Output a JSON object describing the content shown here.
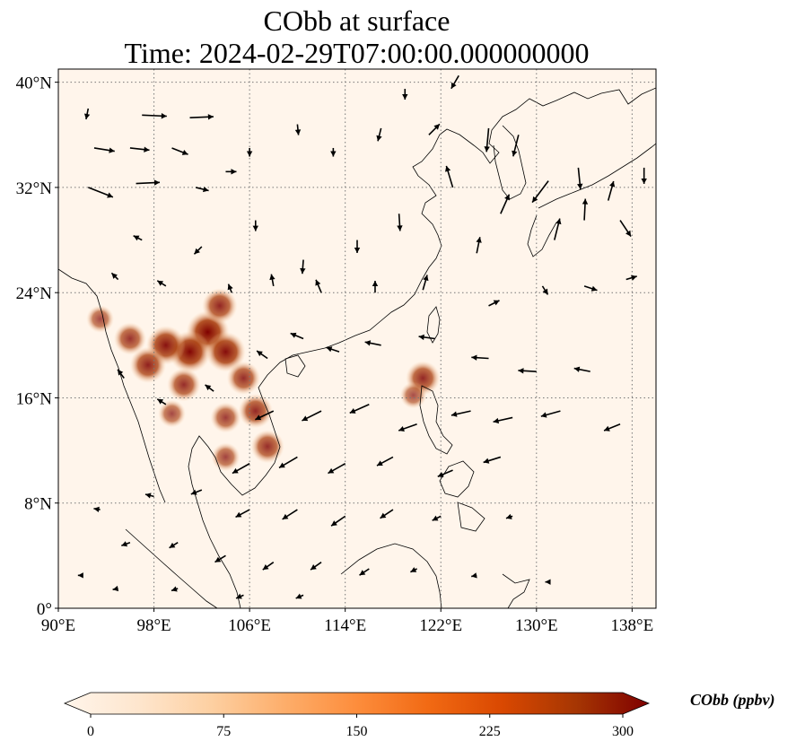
{
  "title": {
    "line1": "CObb at surface",
    "line2": "Time: 2024-02-29T07:00:00.000000000"
  },
  "map": {
    "lon_range": [
      90,
      140
    ],
    "lat_range": [
      0,
      41
    ],
    "lon_ticks": [
      {
        "value": 90,
        "label": "90°E"
      },
      {
        "value": 98,
        "label": "98°E"
      },
      {
        "value": 106,
        "label": "106°E"
      },
      {
        "value": 114,
        "label": "114°E"
      },
      {
        "value": 122,
        "label": "122°E"
      },
      {
        "value": 130,
        "label": "130°E"
      },
      {
        "value": 138,
        "label": "138°E"
      }
    ],
    "lat_ticks": [
      {
        "value": 0,
        "label": "0°"
      },
      {
        "value": 8,
        "label": "8°N"
      },
      {
        "value": 16,
        "label": "16°N"
      },
      {
        "value": 24,
        "label": "24°N"
      },
      {
        "value": 32,
        "label": "32°N"
      },
      {
        "value": 40,
        "label": "40°N"
      }
    ],
    "gridlines": true,
    "background_color": "#fff5eb",
    "hotspots": [
      {
        "lon": 102.5,
        "lat": 21.0,
        "value": 300
      },
      {
        "lon": 101.0,
        "lat": 19.5,
        "value": 290
      },
      {
        "lon": 99.0,
        "lat": 20.0,
        "value": 260
      },
      {
        "lon": 97.5,
        "lat": 18.5,
        "value": 230
      },
      {
        "lon": 104.0,
        "lat": 19.5,
        "value": 270
      },
      {
        "lon": 103.5,
        "lat": 23.0,
        "value": 220
      },
      {
        "lon": 100.5,
        "lat": 17.0,
        "value": 200
      },
      {
        "lon": 105.5,
        "lat": 17.5,
        "value": 200
      },
      {
        "lon": 106.5,
        "lat": 15.0,
        "value": 210
      },
      {
        "lon": 104.0,
        "lat": 14.5,
        "value": 170
      },
      {
        "lon": 107.5,
        "lat": 12.3,
        "value": 200
      },
      {
        "lon": 104.0,
        "lat": 11.5,
        "value": 150
      },
      {
        "lon": 96.0,
        "lat": 20.5,
        "value": 190
      },
      {
        "lon": 93.5,
        "lat": 22.0,
        "value": 140
      },
      {
        "lon": 99.5,
        "lat": 14.8,
        "value": 140
      },
      {
        "lon": 120.5,
        "lat": 17.5,
        "value": 210
      },
      {
        "lon": 119.7,
        "lat": 16.2,
        "value": 130
      }
    ],
    "wind_vectors": [
      {
        "lon": 92.5,
        "lat": 38.0,
        "u": -0.2,
        "v": -1.0
      },
      {
        "lon": 97.0,
        "lat": 37.5,
        "u": 2.3,
        "v": -0.1
      },
      {
        "lon": 101.0,
        "lat": 37.3,
        "u": 2.2,
        "v": 0.1
      },
      {
        "lon": 93.0,
        "lat": 35.0,
        "u": 1.9,
        "v": -0.3
      },
      {
        "lon": 96.0,
        "lat": 35.0,
        "u": 1.8,
        "v": -0.2
      },
      {
        "lon": 99.5,
        "lat": 35.0,
        "u": 1.5,
        "v": -0.6
      },
      {
        "lon": 92.5,
        "lat": 32.0,
        "u": 2.3,
        "v": -0.9
      },
      {
        "lon": 96.5,
        "lat": 32.3,
        "u": 2.2,
        "v": 0.1
      },
      {
        "lon": 101.5,
        "lat": 32.0,
        "u": 1.2,
        "v": -0.3
      },
      {
        "lon": 104.0,
        "lat": 33.2,
        "u": 1.0,
        "v": 0.0
      },
      {
        "lon": 106.0,
        "lat": 35.0,
        "u": 0.0,
        "v": -0.8
      },
      {
        "lon": 110.0,
        "lat": 36.8,
        "u": 0.1,
        "v": -1.0
      },
      {
        "lon": 113.0,
        "lat": 35.0,
        "u": 0.0,
        "v": -0.8
      },
      {
        "lon": 117.0,
        "lat": 36.5,
        "u": -0.3,
        "v": -1.2
      },
      {
        "lon": 119.0,
        "lat": 39.5,
        "u": 0.0,
        "v": -1.0
      },
      {
        "lon": 121.0,
        "lat": 36.0,
        "u": 1.0,
        "v": 1.0
      },
      {
        "lon": 123.5,
        "lat": 40.5,
        "u": -0.7,
        "v": -1.2
      },
      {
        "lon": 126.0,
        "lat": 36.5,
        "u": -0.2,
        "v": -2.2
      },
      {
        "lon": 128.5,
        "lat": 36.0,
        "u": -0.5,
        "v": -2.0
      },
      {
        "lon": 131.0,
        "lat": 32.5,
        "u": -1.5,
        "v": -2.0
      },
      {
        "lon": 133.5,
        "lat": 33.5,
        "u": 0.2,
        "v": -2.0
      },
      {
        "lon": 136.0,
        "lat": 31.0,
        "u": 0.5,
        "v": 1.8
      },
      {
        "lon": 139.0,
        "lat": 33.5,
        "u": 0.0,
        "v": -1.5
      },
      {
        "lon": 123.0,
        "lat": 32.0,
        "u": -0.6,
        "v": 2.0
      },
      {
        "lon": 127.0,
        "lat": 30.0,
        "u": 0.8,
        "v": 1.8
      },
      {
        "lon": 134.0,
        "lat": 29.5,
        "u": 0.1,
        "v": 2.0
      },
      {
        "lon": 137.0,
        "lat": 29.5,
        "u": 1.0,
        "v": -1.5
      },
      {
        "lon": 131.5,
        "lat": 28.0,
        "u": 0.5,
        "v": 2.0
      },
      {
        "lon": 125.0,
        "lat": 27.0,
        "u": 0.3,
        "v": 1.5
      },
      {
        "lon": 118.5,
        "lat": 30.0,
        "u": 0.1,
        "v": -1.6
      },
      {
        "lon": 115.0,
        "lat": 28.0,
        "u": 0.0,
        "v": -1.2
      },
      {
        "lon": 110.5,
        "lat": 26.5,
        "u": -0.1,
        "v": -1.3
      },
      {
        "lon": 106.5,
        "lat": 29.5,
        "u": 0.0,
        "v": -1.0
      },
      {
        "lon": 102.0,
        "lat": 27.5,
        "u": -0.7,
        "v": -0.7
      },
      {
        "lon": 97.0,
        "lat": 28.0,
        "u": -0.8,
        "v": 0.4
      },
      {
        "lon": 95.0,
        "lat": 25.0,
        "u": -0.6,
        "v": 0.6
      },
      {
        "lon": 99.0,
        "lat": 24.5,
        "u": -0.8,
        "v": 0.5
      },
      {
        "lon": 104.5,
        "lat": 24.0,
        "u": -0.3,
        "v": 0.8
      },
      {
        "lon": 108.0,
        "lat": 24.5,
        "u": -0.2,
        "v": 1.1
      },
      {
        "lon": 112.0,
        "lat": 24.0,
        "u": -0.5,
        "v": 1.2
      },
      {
        "lon": 116.5,
        "lat": 24.0,
        "u": 0.0,
        "v": 1.1
      },
      {
        "lon": 120.5,
        "lat": 24.2,
        "u": 0.4,
        "v": 1.4
      },
      {
        "lon": 126.0,
        "lat": 23.0,
        "u": 1.0,
        "v": 0.5
      },
      {
        "lon": 130.5,
        "lat": 24.5,
        "u": 0.5,
        "v": -0.8
      },
      {
        "lon": 134.0,
        "lat": 24.5,
        "u": 1.2,
        "v": -0.4
      },
      {
        "lon": 137.5,
        "lat": 25.0,
        "u": 1.0,
        "v": 0.3
      },
      {
        "lon": 95.5,
        "lat": 17.5,
        "u": -0.6,
        "v": 0.8
      },
      {
        "lon": 99.0,
        "lat": 15.5,
        "u": -0.8,
        "v": 0.5
      },
      {
        "lon": 103.0,
        "lat": 16.5,
        "u": -0.8,
        "v": 0.6
      },
      {
        "lon": 107.5,
        "lat": 19.0,
        "u": -1.0,
        "v": 0.7
      },
      {
        "lon": 110.5,
        "lat": 20.5,
        "u": -1.2,
        "v": 0.5
      },
      {
        "lon": 113.5,
        "lat": 19.5,
        "u": -1.2,
        "v": 0.4
      },
      {
        "lon": 117.0,
        "lat": 20.0,
        "u": -1.5,
        "v": 0.3
      },
      {
        "lon": 121.5,
        "lat": 20.5,
        "u": -1.5,
        "v": 0.2
      },
      {
        "lon": 126.0,
        "lat": 19.0,
        "u": -1.6,
        "v": 0.1
      },
      {
        "lon": 130.0,
        "lat": 18.0,
        "u": -1.7,
        "v": 0.1
      },
      {
        "lon": 134.5,
        "lat": 18.0,
        "u": -1.5,
        "v": 0.3
      },
      {
        "lon": 108.0,
        "lat": 15.0,
        "u": -1.7,
        "v": -0.8
      },
      {
        "lon": 112.0,
        "lat": 15.0,
        "u": -1.8,
        "v": -0.9
      },
      {
        "lon": 116.0,
        "lat": 15.5,
        "u": -1.8,
        "v": -0.8
      },
      {
        "lon": 120.0,
        "lat": 14.0,
        "u": -1.7,
        "v": -0.6
      },
      {
        "lon": 124.5,
        "lat": 15.0,
        "u": -1.8,
        "v": -0.4
      },
      {
        "lon": 128.0,
        "lat": 14.5,
        "u": -1.8,
        "v": -0.4
      },
      {
        "lon": 132.0,
        "lat": 15.0,
        "u": -1.8,
        "v": -0.5
      },
      {
        "lon": 137.0,
        "lat": 14.0,
        "u": -1.5,
        "v": -0.6
      },
      {
        "lon": 106.0,
        "lat": 11.0,
        "u": -1.6,
        "v": -0.9
      },
      {
        "lon": 110.0,
        "lat": 11.5,
        "u": -1.7,
        "v": -1.0
      },
      {
        "lon": 114.0,
        "lat": 11.0,
        "u": -1.6,
        "v": -0.9
      },
      {
        "lon": 118.0,
        "lat": 11.5,
        "u": -1.5,
        "v": -0.8
      },
      {
        "lon": 123.0,
        "lat": 10.5,
        "u": -1.4,
        "v": -0.6
      },
      {
        "lon": 127.0,
        "lat": 11.5,
        "u": -1.6,
        "v": -0.5
      },
      {
        "lon": 98.0,
        "lat": 8.5,
        "u": -0.8,
        "v": 0.2
      },
      {
        "lon": 102.0,
        "lat": 9.0,
        "u": -1.0,
        "v": -0.4
      },
      {
        "lon": 106.0,
        "lat": 7.5,
        "u": -1.3,
        "v": -0.7
      },
      {
        "lon": 110.0,
        "lat": 7.5,
        "u": -1.4,
        "v": -0.9
      },
      {
        "lon": 114.0,
        "lat": 7.0,
        "u": -1.3,
        "v": -0.9
      },
      {
        "lon": 118.0,
        "lat": 7.5,
        "u": -1.2,
        "v": -0.8
      },
      {
        "lon": 122.0,
        "lat": 7.0,
        "u": -0.8,
        "v": -0.4
      },
      {
        "lon": 128.0,
        "lat": 7.0,
        "u": -0.6,
        "v": -0.2
      },
      {
        "lon": 93.5,
        "lat": 7.5,
        "u": -0.6,
        "v": 0.1
      },
      {
        "lon": 96.0,
        "lat": 5.0,
        "u": -0.8,
        "v": -0.3
      },
      {
        "lon": 100.0,
        "lat": 5.0,
        "u": -0.8,
        "v": -0.5
      },
      {
        "lon": 104.0,
        "lat": 4.0,
        "u": -1.0,
        "v": -0.6
      },
      {
        "lon": 108.0,
        "lat": 3.5,
        "u": -1.0,
        "v": -0.7
      },
      {
        "lon": 112.0,
        "lat": 3.5,
        "u": -1.0,
        "v": -0.7
      },
      {
        "lon": 116.0,
        "lat": 3.0,
        "u": -0.9,
        "v": -0.6
      },
      {
        "lon": 120.0,
        "lat": 3.0,
        "u": -0.6,
        "v": -0.3
      },
      {
        "lon": 125.0,
        "lat": 2.5,
        "u": -0.5,
        "v": -0.1
      },
      {
        "lon": 131.0,
        "lat": 2.0,
        "u": -0.3,
        "v": 0.0
      },
      {
        "lon": 92.0,
        "lat": 2.5,
        "u": -0.4,
        "v": 0.0
      },
      {
        "lon": 95.0,
        "lat": 1.5,
        "u": -0.5,
        "v": -0.1
      },
      {
        "lon": 100.0,
        "lat": 1.5,
        "u": -0.6,
        "v": -0.2
      },
      {
        "lon": 105.5,
        "lat": 1.0,
        "u": -0.7,
        "v": -0.3
      },
      {
        "lon": 110.5,
        "lat": 1.0,
        "u": -0.7,
        "v": -0.3
      }
    ]
  },
  "colorbar": {
    "label": "CObb (ppbv)",
    "min": 0,
    "max": 300,
    "ticks": [
      {
        "value": 0,
        "label": "0"
      },
      {
        "value": 75,
        "label": "75"
      },
      {
        "value": 150,
        "label": "150"
      },
      {
        "value": 225,
        "label": "225"
      },
      {
        "value": 300,
        "label": "300"
      }
    ],
    "colors": [
      "#fff5eb",
      "#fee6ce",
      "#fdd0a2",
      "#fdae6b",
      "#fd8d3c",
      "#f16913",
      "#d94801",
      "#a63603",
      "#7f0000"
    ]
  }
}
